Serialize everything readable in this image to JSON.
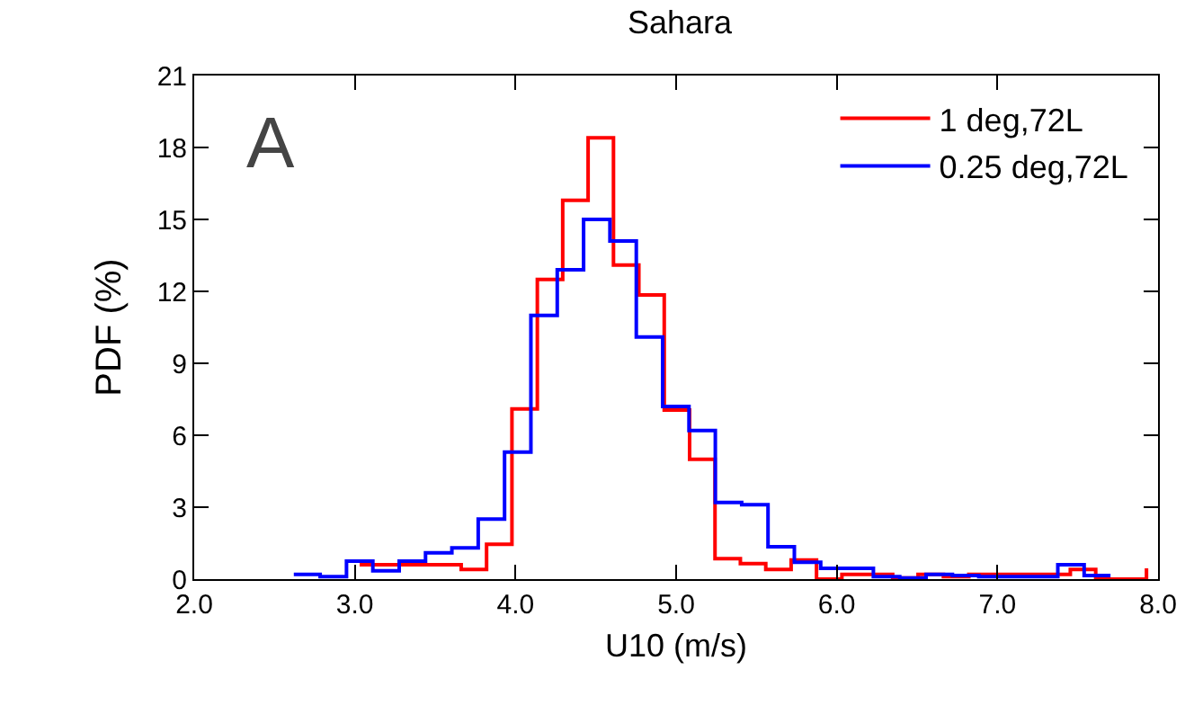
{
  "chart_data": {
    "type": "step",
    "title": "Sahara",
    "xlabel": "U10 (m/s)",
    "ylabel": "PDF (%)",
    "annotations": [
      "A"
    ],
    "xlim": [
      2.0,
      8.0
    ],
    "xticks": [
      {
        "value": 2,
        "label": "2.0"
      },
      {
        "value": 3,
        "label": "3.0"
      },
      {
        "value": 4,
        "label": "4.0"
      },
      {
        "value": 5,
        "label": "5.0"
      },
      {
        "value": 6,
        "label": "6.0"
      },
      {
        "value": 7,
        "label": "7.0"
      },
      {
        "value": 8,
        "label": "8.0"
      }
    ],
    "ylim": [
      0,
      21
    ],
    "yticks": [
      0,
      3,
      6,
      9,
      12,
      15,
      18,
      21
    ],
    "grid": false,
    "legend": "top right",
    "marker": "none",
    "line_style": "solid",
    "series": [
      {
        "name": "1 deg,72L",
        "color": "#ff0000",
        "x": [
          3.03,
          3.188,
          3.346,
          3.504,
          3.662,
          3.82,
          3.978,
          4.136,
          4.294,
          4.452,
          4.61,
          4.768,
          4.926,
          5.084,
          5.242,
          5.4,
          5.558,
          5.716,
          5.874,
          6.032,
          6.19,
          6.348,
          6.506,
          6.664,
          6.822,
          6.98,
          7.138,
          7.296,
          7.454,
          7.612,
          7.77,
          7.928
        ],
        "values": [
          0.6,
          0.6,
          0.6,
          0.6,
          0.4,
          1.45,
          7.1,
          12.5,
          15.8,
          18.4,
          13.1,
          11.85,
          7.05,
          5.0,
          0.85,
          0.65,
          0.4,
          0.8,
          0,
          0.2,
          0.2,
          0.05,
          0.2,
          0.1,
          0.2,
          0.2,
          0.2,
          0.2,
          0.4,
          0,
          0,
          0.45
        ]
      },
      {
        "name": "0.25 deg,72L",
        "color": "#0000ff",
        "x": [
          2.62,
          2.784,
          2.948,
          3.112,
          3.276,
          3.44,
          3.604,
          3.768,
          3.932,
          4.096,
          4.26,
          4.424,
          4.588,
          4.752,
          4.916,
          5.08,
          5.244,
          5.408,
          5.572,
          5.736,
          5.9,
          6.064,
          6.228,
          6.392,
          6.556,
          6.72,
          6.884,
          7.048,
          7.212,
          7.376,
          7.54,
          7.704
        ],
        "values": [
          0.2,
          0.1,
          0.75,
          0.35,
          0.75,
          1.1,
          1.3,
          2.5,
          5.3,
          11.0,
          12.9,
          15.0,
          14.1,
          10.1,
          7.2,
          6.2,
          3.2,
          3.1,
          1.35,
          0.7,
          0.45,
          0.45,
          0.1,
          0.05,
          0.2,
          0.15,
          0.1,
          0.1,
          0.1,
          0.6,
          0.15,
          0.15
        ]
      }
    ]
  }
}
